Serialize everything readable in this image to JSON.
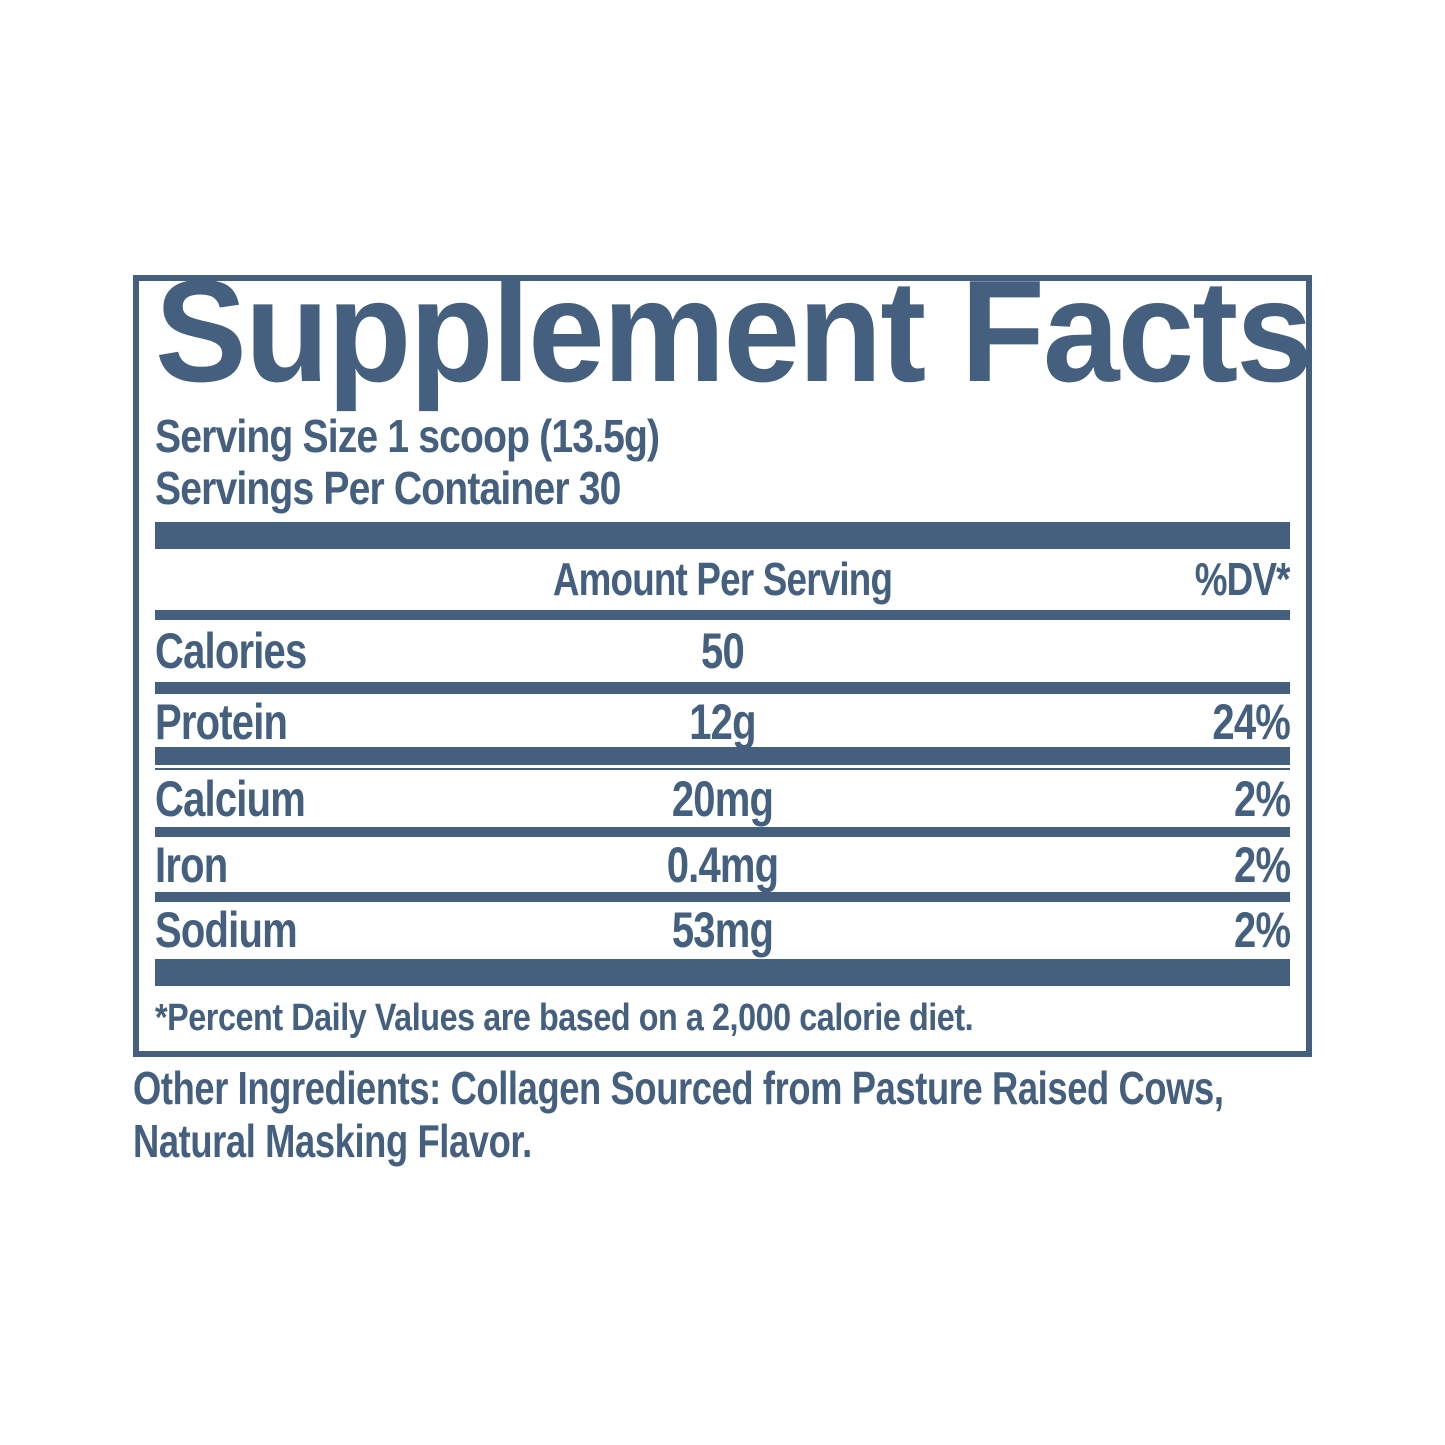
{
  "colors": {
    "ink": "#44607e"
  },
  "label": {
    "title": "Supplement Facts",
    "serving": {
      "size_line": "Serving Size 1 scoop (13.5g)",
      "container_line": "Servings Per Container 30"
    },
    "table": {
      "amount_header": "Amount Per Serving",
      "dv_header": "%DV*",
      "rows": [
        {
          "name": "Calories",
          "amount": "50",
          "dv": ""
        },
        {
          "name": "Protein",
          "amount": "12g",
          "dv": "24%"
        },
        {
          "name": "Calcium",
          "amount": "20mg",
          "dv": "2%"
        },
        {
          "name": "Iron",
          "amount": "0.4mg",
          "dv": "2%"
        },
        {
          "name": "Sodium",
          "amount": "53mg",
          "dv": "2%"
        }
      ],
      "footnote": "*Percent Daily Values are based on a 2,000 calorie diet."
    },
    "other_ingredients": "Other Ingredients: Collagen Sourced from Pasture Raised Cows, Natural Masking Flavor."
  }
}
